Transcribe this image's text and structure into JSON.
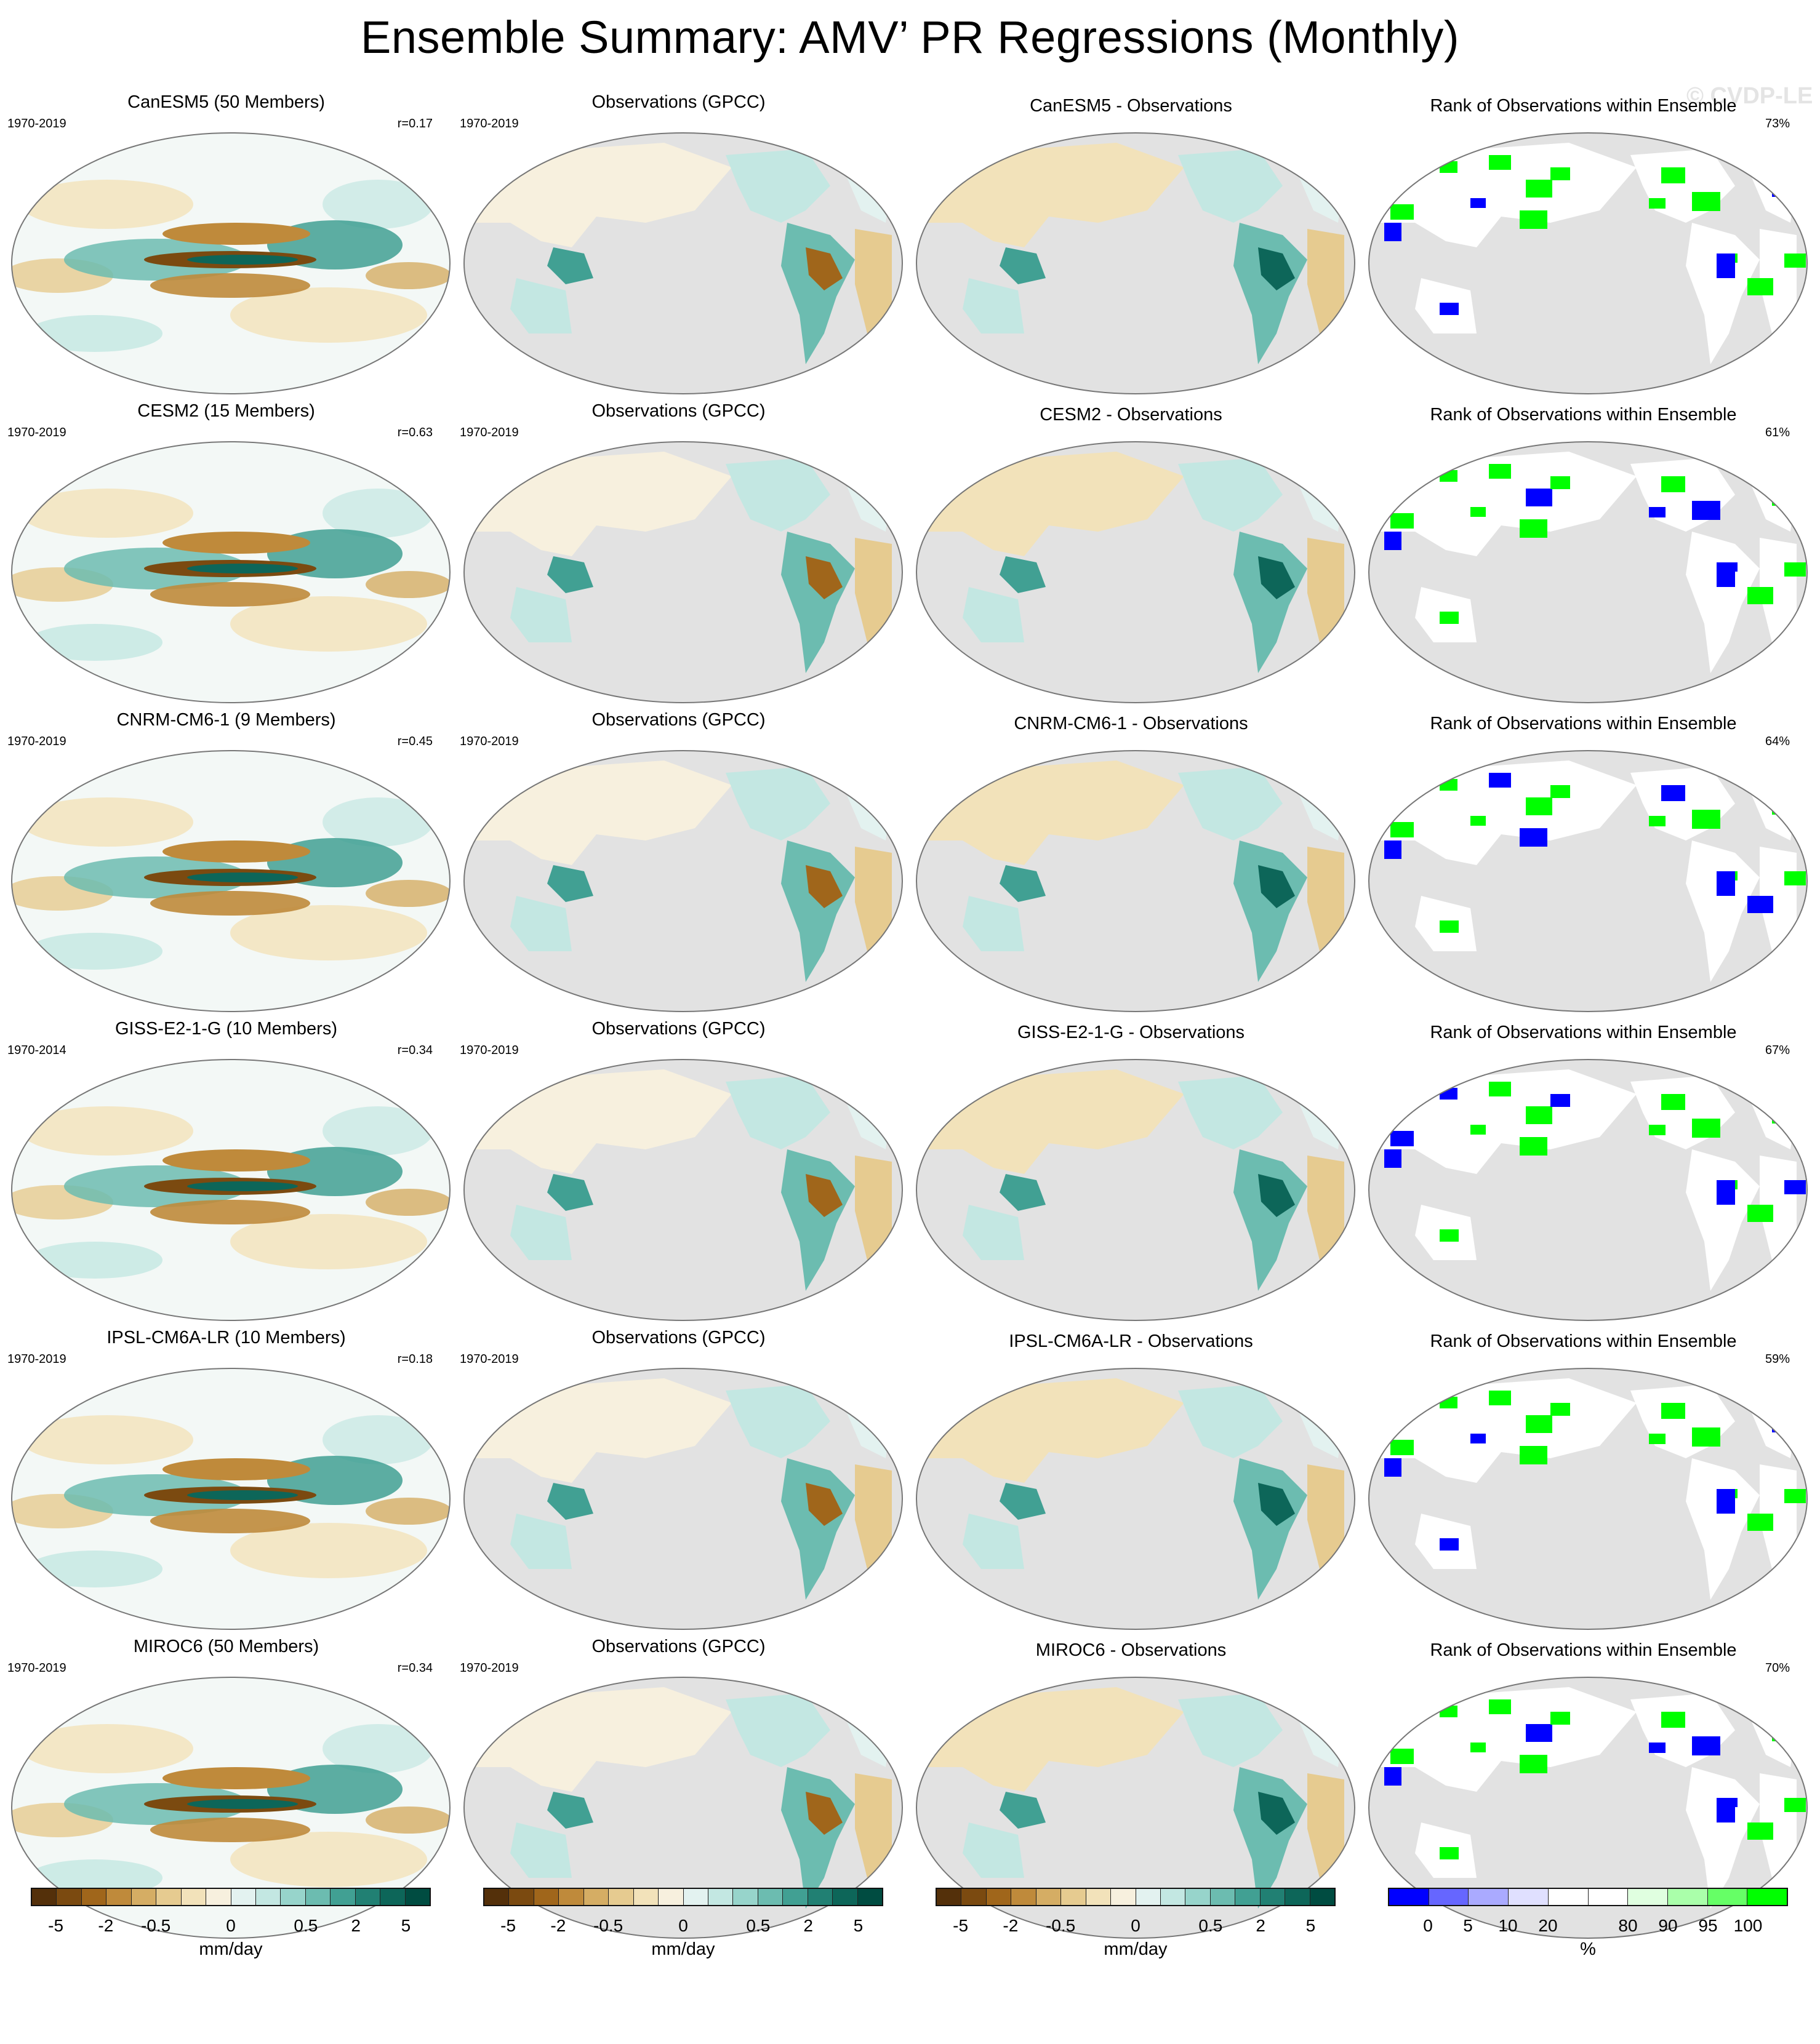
{
  "title": "Ensemble Summary: AMV’ PR Regressions (Monthly)",
  "watermark": "© CVDP-LE",
  "rows": [
    {
      "model_title": "CanESM5 (50 Members)",
      "model_years": "1970-2019",
      "correlation": "r=0.17",
      "obs_title": "Observations (GPCC)",
      "obs_years": "1970-2019",
      "diff_title": "CanESM5 - Observations",
      "rank_title": "Rank of Observations within Ensemble",
      "rank_pct": "73%"
    },
    {
      "model_title": "CESM2 (15 Members)",
      "model_years": "1970-2019",
      "correlation": "r=0.63",
      "obs_title": "Observations (GPCC)",
      "obs_years": "1970-2019",
      "diff_title": "CESM2 - Observations",
      "rank_title": "Rank of Observations within Ensemble",
      "rank_pct": "61%"
    },
    {
      "model_title": "CNRM-CM6-1 (9 Members)",
      "model_years": "1970-2019",
      "correlation": "r=0.45",
      "obs_title": "Observations (GPCC)",
      "obs_years": "1970-2019",
      "diff_title": "CNRM-CM6-1 - Observations",
      "rank_title": "Rank of Observations within Ensemble",
      "rank_pct": "64%"
    },
    {
      "model_title": "GISS-E2-1-G (10 Members)",
      "model_years": "1970-2014",
      "correlation": "r=0.34",
      "obs_title": "Observations (GPCC)",
      "obs_years": "1970-2019",
      "diff_title": "GISS-E2-1-G - Observations",
      "rank_title": "Rank of Observations within Ensemble",
      "rank_pct": "67%"
    },
    {
      "model_title": "IPSL-CM6A-LR (10 Members)",
      "model_years": "1970-2019",
      "correlation": "r=0.18",
      "obs_title": "Observations (GPCC)",
      "obs_years": "1970-2019",
      "diff_title": "IPSL-CM6A-LR - Observations",
      "rank_title": "Rank of Observations within Ensemble",
      "rank_pct": "59%"
    },
    {
      "model_title": "MIROC6 (50 Members)",
      "model_years": "1970-2019",
      "correlation": "r=0.34",
      "obs_title": "Observations (GPCC)",
      "obs_years": "1970-2019",
      "diff_title": "MIROC6 - Observations",
      "rank_title": "Rank of Observations within Ensemble",
      "rank_pct": "70%"
    }
  ],
  "colorbars": {
    "pr": {
      "ticks": [
        "-5",
        "-2",
        "-0.5",
        "0",
        "0.5",
        "2",
        "5"
      ],
      "unit": "mm/day",
      "colors": [
        "#54300a",
        "#7b4a10",
        "#a0661b",
        "#bf8a3b",
        "#d5ad64",
        "#e6cb90",
        "#f2e2ba",
        "#f7f0de",
        "#e3f2f0",
        "#c3e7e2",
        "#97d4cb",
        "#6cbcb0",
        "#41a093",
        "#218073",
        "#0d6659",
        "#004c41"
      ]
    },
    "rank": {
      "ticks": [
        "0",
        "5",
        "10",
        "20",
        "80",
        "90",
        "95",
        "100"
      ],
      "unit": "%",
      "colors": [
        "#0000ff",
        "#6666ff",
        "#aaaaff",
        "#e0e0ff",
        "#ffffff",
        "#ffffff",
        "#e0ffe0",
        "#aaffaa",
        "#66ff66",
        "#00ff00"
      ]
    }
  },
  "colors": {
    "land_mask": "#e2e2e2",
    "ocean_neutral": "#f3f8f6",
    "coastline": "#777777",
    "rank_low": "#0000ff",
    "rank_high": "#00ff00"
  }
}
